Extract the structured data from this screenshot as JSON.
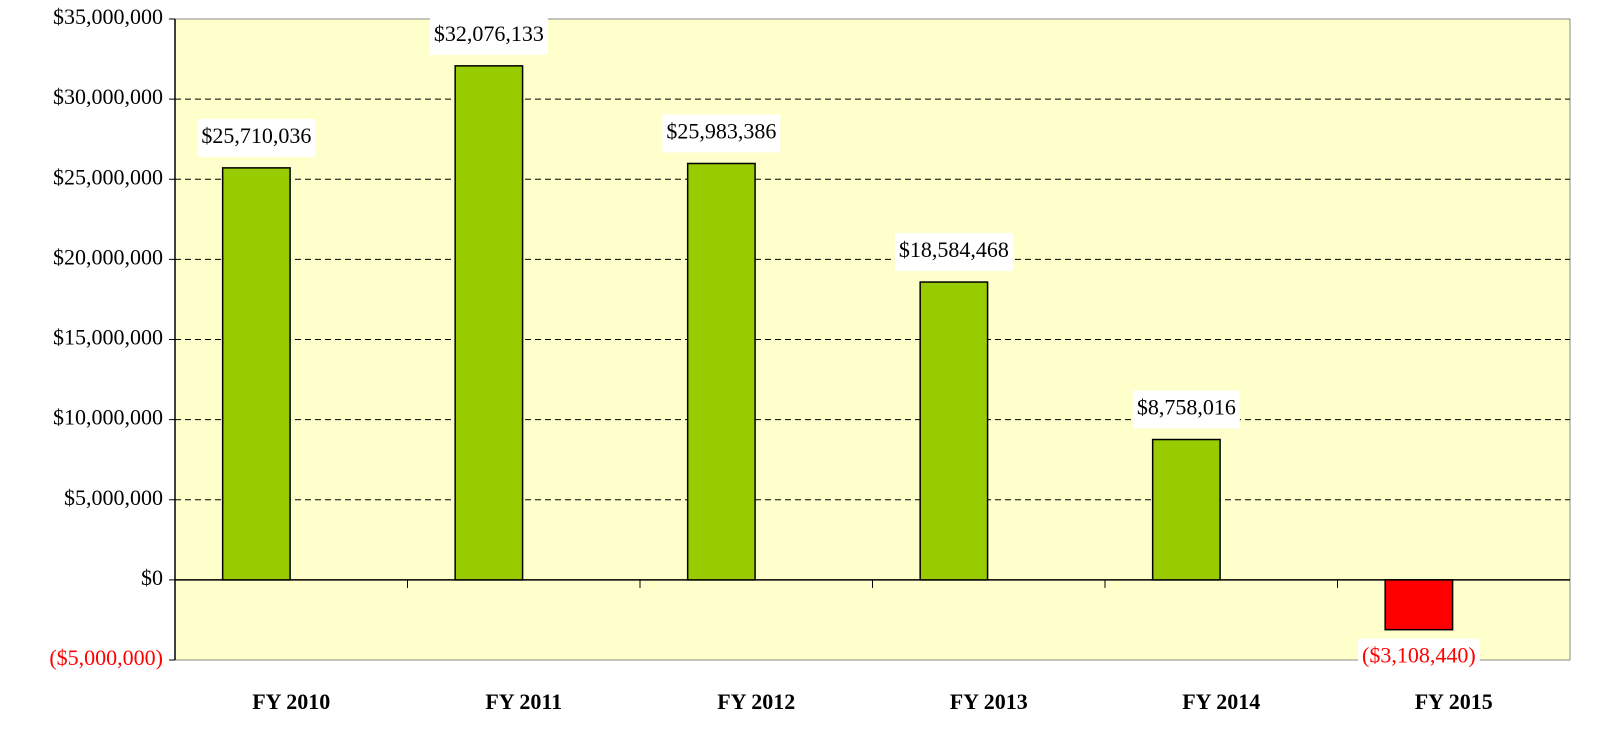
{
  "chart_data": {
    "type": "bar",
    "categories": [
      "FY 2010",
      "FY 2011",
      "FY 2012",
      "FY 2013",
      "FY 2014",
      "FY 2015"
    ],
    "values": [
      25710036,
      32076133,
      25983386,
      18584468,
      8758016,
      -3108440
    ],
    "value_labels": [
      "$25,710,036",
      "$32,076,133",
      "$25,983,386",
      "$18,584,468",
      "$8,758,016",
      "($3,108,440)"
    ],
    "colors": [
      "#99cc00",
      "#99cc00",
      "#99cc00",
      "#99cc00",
      "#99cc00",
      "#ff0000"
    ],
    "negative_color": "#ff0000",
    "ylim": [
      -5000000,
      35000000
    ],
    "yticks": [
      {
        "value": -5000000,
        "label": "($5,000,000)"
      },
      {
        "value": 0,
        "label": "$0"
      },
      {
        "value": 5000000,
        "label": "$5,000,000"
      },
      {
        "value": 10000000,
        "label": "$10,000,000"
      },
      {
        "value": 15000000,
        "label": "$15,000,000"
      },
      {
        "value": 20000000,
        "label": "$20,000,000"
      },
      {
        "value": 25000000,
        "label": "$25,000,000"
      },
      {
        "value": 30000000,
        "label": "$30,000,000"
      },
      {
        "value": 35000000,
        "label": "$35,000,000"
      }
    ],
    "grid": true
  }
}
